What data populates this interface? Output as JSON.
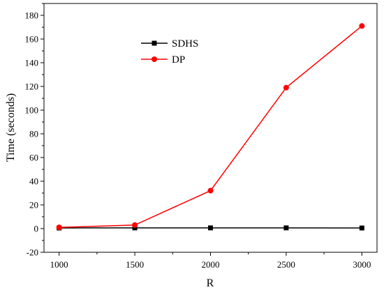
{
  "chart_data": {
    "type": "line",
    "title": "",
    "xlabel": "R",
    "ylabel": "Time (seconds)",
    "x": [
      1000,
      1500,
      2000,
      2500,
      3000
    ],
    "xlim": [
      900,
      3100
    ],
    "ylim": [
      -20,
      190
    ],
    "xticks": [
      "1000",
      "1500",
      "2000",
      "2500",
      "3000"
    ],
    "yticks": [
      "-20",
      "0",
      "20",
      "40",
      "60",
      "80",
      "100",
      "120",
      "140",
      "160",
      "180"
    ],
    "grid": false,
    "legend_position": "top-center",
    "series": [
      {
        "name": "SDHS",
        "marker": "square",
        "color": "#000000",
        "values": [
          0.5,
          0.6,
          0.6,
          0.6,
          0.5
        ]
      },
      {
        "name": "DP",
        "marker": "circle",
        "color": "#ff0000",
        "values": [
          1,
          3,
          32,
          119,
          171
        ]
      }
    ]
  }
}
